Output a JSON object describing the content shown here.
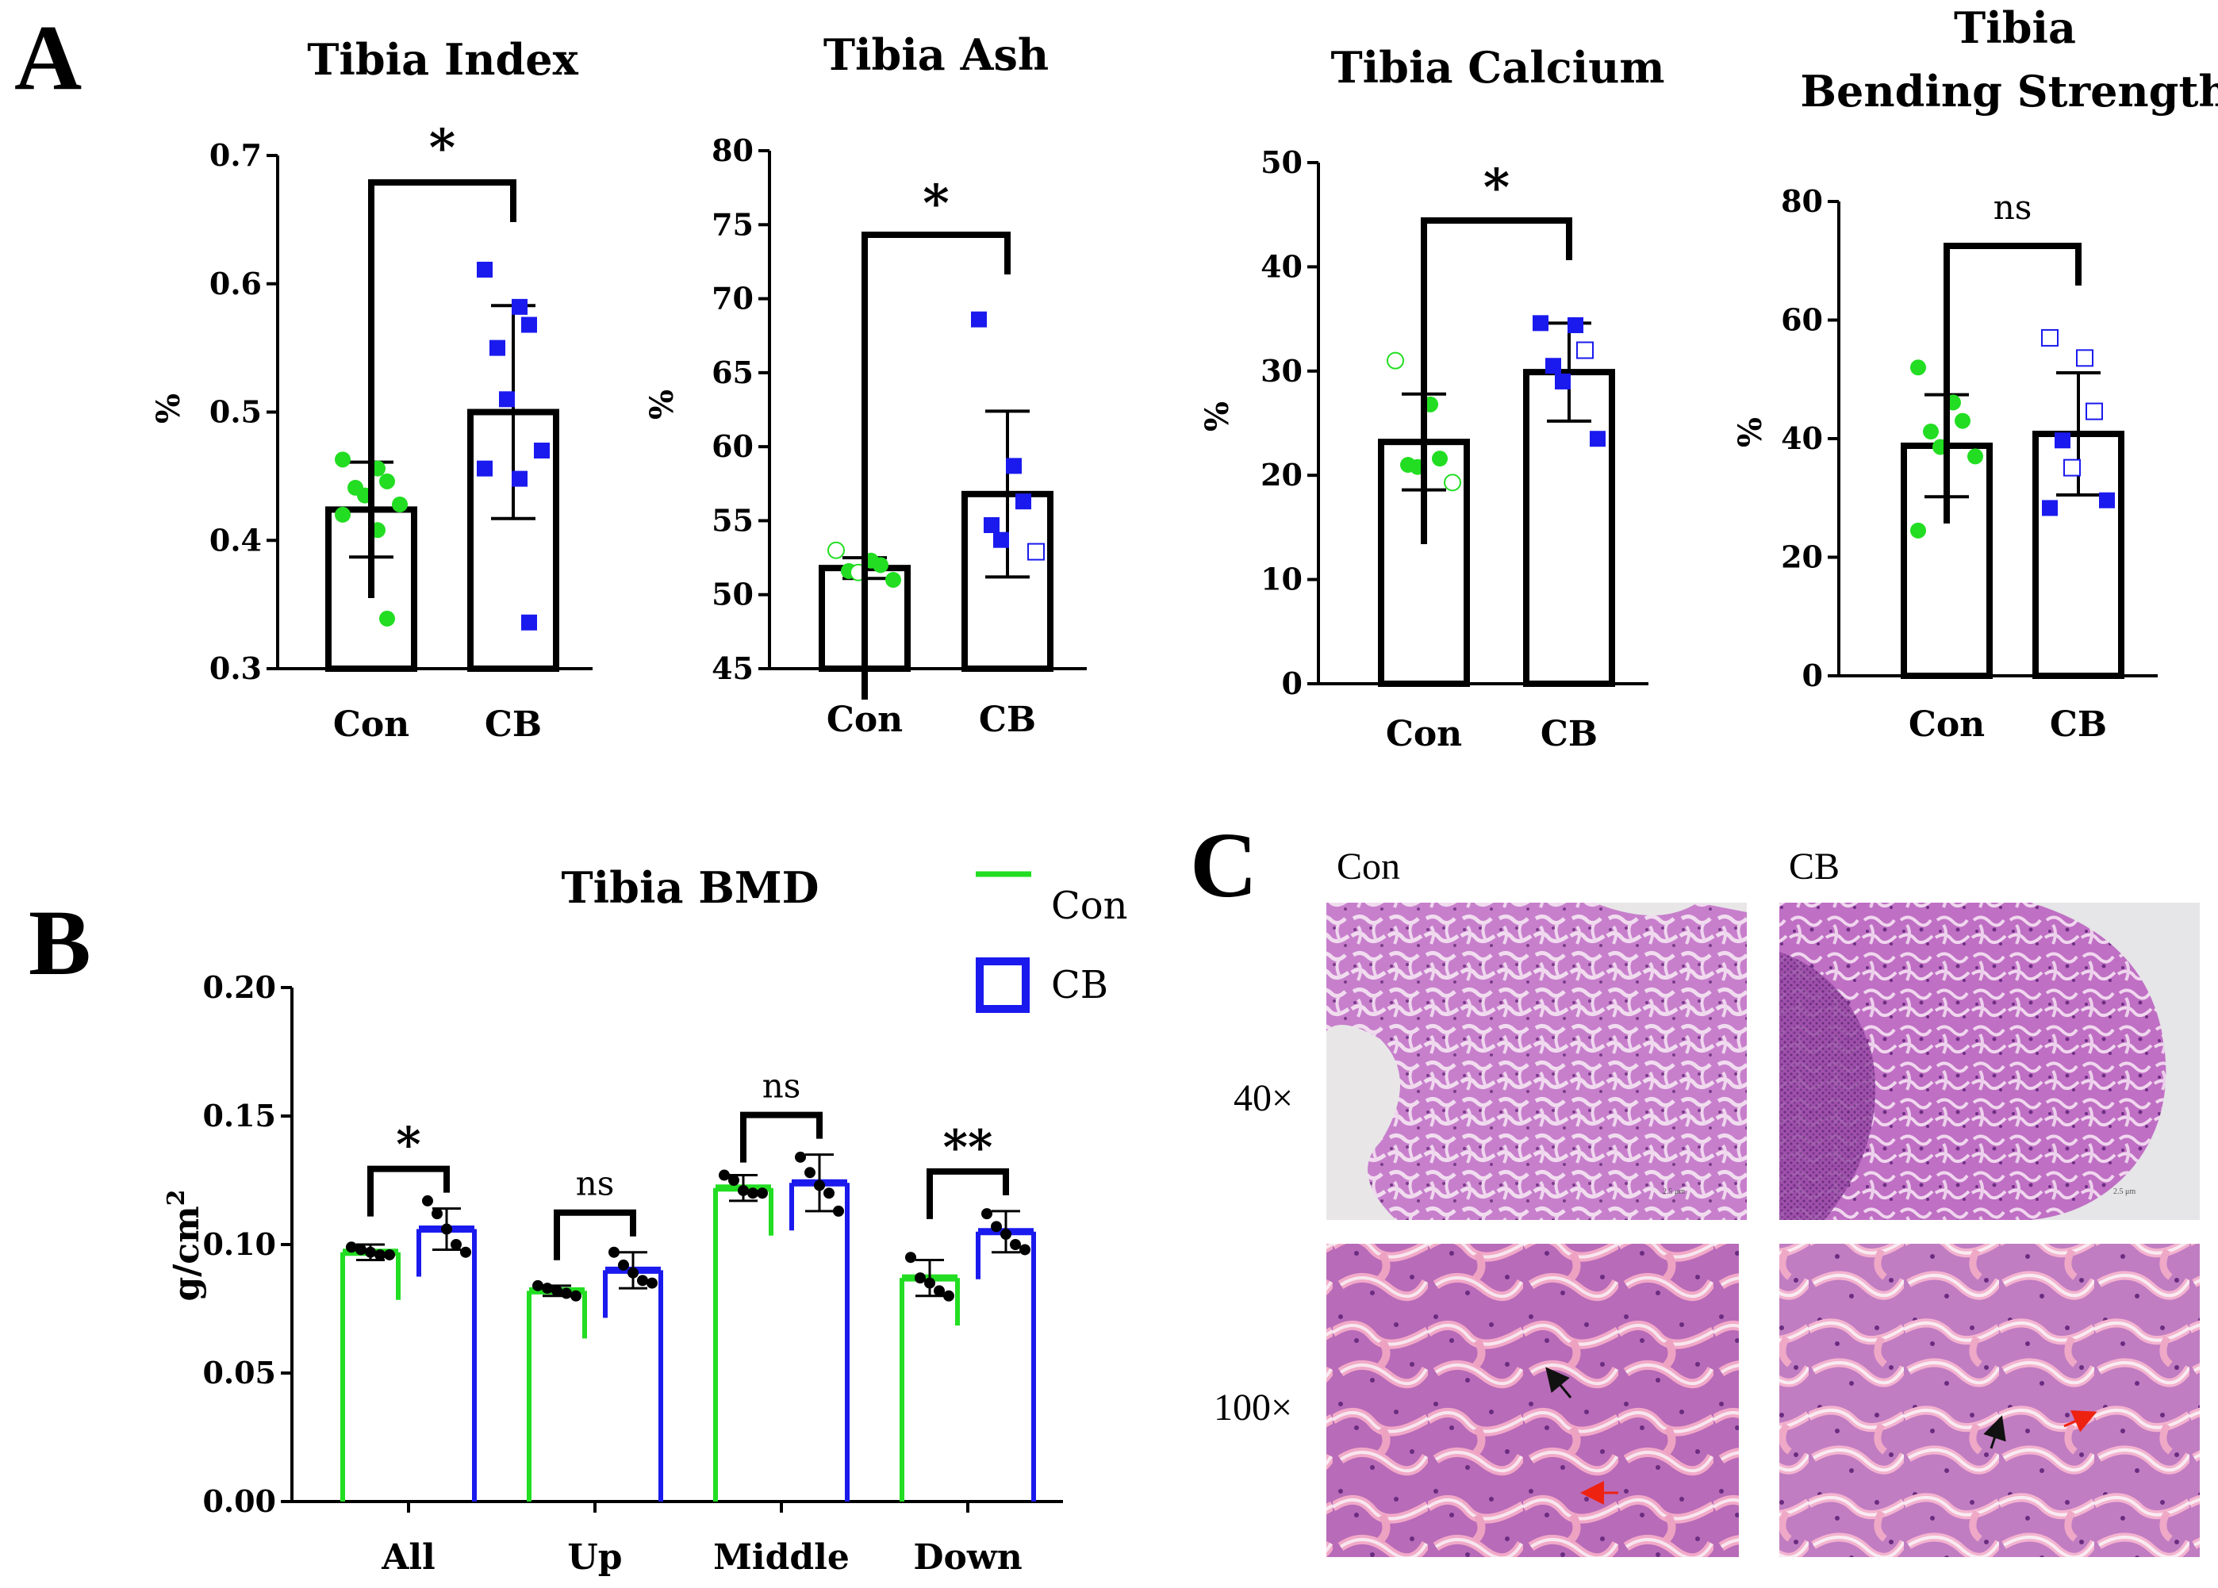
{
  "panel_labels": {
    "a": "A",
    "b": "B",
    "c": "C"
  },
  "colors": {
    "con": "#22dd22",
    "cb": "#1a1aee",
    "ink": "#000000",
    "red_arrow": "#ee2211",
    "black_arrow": "#111111"
  },
  "chart_data": [
    {
      "id": "index",
      "type": "bar",
      "title": "Tibia Index",
      "ylabel": "%",
      "categories": [
        "Con",
        "CB"
      ],
      "ylim": [
        0.3,
        0.7
      ],
      "ticks": [
        0.3,
        0.4,
        0.5,
        0.6,
        0.7
      ],
      "tick_labels": [
        "0.3",
        "0.4",
        "0.5",
        "0.6",
        "0.7"
      ],
      "values": [
        0.424,
        0.5
      ],
      "sd": [
        0.037,
        0.083
      ],
      "significance": "*",
      "points": [
        [
          0.463,
          0.456,
          0.446,
          0.441,
          0.435,
          0.428,
          0.42,
          0.408,
          0.339
        ],
        [
          0.611,
          0.582,
          0.568,
          0.55,
          0.51,
          0.47,
          0.456,
          0.448,
          0.336
        ]
      ]
    },
    {
      "id": "ash",
      "type": "bar",
      "title": "Tibia Ash",
      "ylabel": "%",
      "categories": [
        "Con",
        "CB"
      ],
      "ylim": [
        45,
        80
      ],
      "ticks": [
        45,
        50,
        55,
        60,
        65,
        70,
        75,
        80
      ],
      "tick_labels": [
        "45",
        "50",
        "55",
        "60",
        "65",
        "70",
        "75",
        "80"
      ],
      "values": [
        51.8,
        56.8
      ],
      "sd": [
        0.7,
        5.6
      ],
      "significance": "*",
      "points": [
        [
          53.0,
          52.3,
          52.0,
          51.6,
          51.5,
          51.0
        ],
        [
          68.6,
          58.7,
          56.3,
          54.7,
          53.7,
          52.9
        ]
      ]
    },
    {
      "id": "calcium",
      "type": "bar",
      "title": "Tibia Calcium",
      "ylabel": "%",
      "categories": [
        "Con",
        "CB"
      ],
      "ylim": [
        0,
        50
      ],
      "ticks": [
        0,
        10,
        20,
        30,
        40,
        50
      ],
      "tick_labels": [
        "0",
        "10",
        "20",
        "30",
        "40",
        "50"
      ],
      "values": [
        23.2,
        29.9
      ],
      "sd": [
        4.6,
        4.7
      ],
      "significance": "*",
      "points": [
        [
          31.0,
          26.8,
          21.6,
          21.0,
          20.8,
          19.3
        ],
        [
          34.6,
          34.4,
          32.0,
          30.5,
          29.0,
          23.5
        ]
      ]
    },
    {
      "id": "bending",
      "type": "bar",
      "title": "Tibia Bending Strength",
      "title_lines": [
        "Tibia",
        "Bending Strength"
      ],
      "ylabel": "%",
      "categories": [
        "Con",
        "CB"
      ],
      "ylim": [
        0,
        80
      ],
      "ticks": [
        0,
        20,
        40,
        60,
        80
      ],
      "tick_labels": [
        "0",
        "20",
        "40",
        "60",
        "80"
      ],
      "values": [
        38.8,
        40.8
      ],
      "sd": [
        8.6,
        10.3
      ],
      "significance": "ns",
      "points": [
        [
          52.0,
          46.1,
          43.0,
          41.2,
          38.6,
          37.0,
          24.5
        ],
        [
          57.0,
          53.6,
          44.6,
          39.7,
          35.1,
          29.6,
          28.3
        ]
      ]
    },
    {
      "id": "bmd",
      "type": "bar",
      "title": "Tibia BMD",
      "ylabel": "g/cm",
      "ylabel_sup": "2",
      "categories": [
        "All",
        "Up",
        "Middle",
        "Down"
      ],
      "ylim": [
        0,
        0.2
      ],
      "ticks": [
        0.0,
        0.05,
        0.1,
        0.15,
        0.2
      ],
      "tick_labels": [
        "0.00",
        "0.05",
        "0.10",
        "0.15",
        "0.20"
      ],
      "legend": {
        "position": "top-right",
        "entries": [
          "Con",
          "CB"
        ]
      },
      "series": [
        {
          "name": "Con",
          "values": [
            0.097,
            0.082,
            0.122,
            0.087
          ],
          "sd": [
            0.003,
            0.002,
            0.005,
            0.007
          ]
        },
        {
          "name": "CB",
          "values": [
            0.106,
            0.09,
            0.124,
            0.105
          ],
          "sd": [
            0.008,
            0.007,
            0.011,
            0.008
          ]
        }
      ],
      "significance": [
        "*",
        "ns",
        "ns",
        "**"
      ],
      "points": [
        [
          [
            0.099,
            0.098,
            0.097,
            0.096,
            0.096
          ],
          [
            0.117,
            0.112,
            0.106,
            0.1,
            0.097
          ]
        ],
        [
          [
            0.084,
            0.083,
            0.082,
            0.081,
            0.08
          ],
          [
            0.097,
            0.092,
            0.089,
            0.086,
            0.085
          ]
        ],
        [
          [
            0.127,
            0.125,
            0.121,
            0.12,
            0.12
          ],
          [
            0.134,
            0.128,
            0.123,
            0.12,
            0.113
          ]
        ],
        [
          [
            0.095,
            0.087,
            0.085,
            0.082,
            0.08
          ],
          [
            0.112,
            0.107,
            0.104,
            0.1,
            0.098
          ]
        ]
      ]
    }
  ],
  "histology": {
    "columns": [
      "Con",
      "CB"
    ],
    "rows": [
      "40×",
      "100×"
    ]
  }
}
